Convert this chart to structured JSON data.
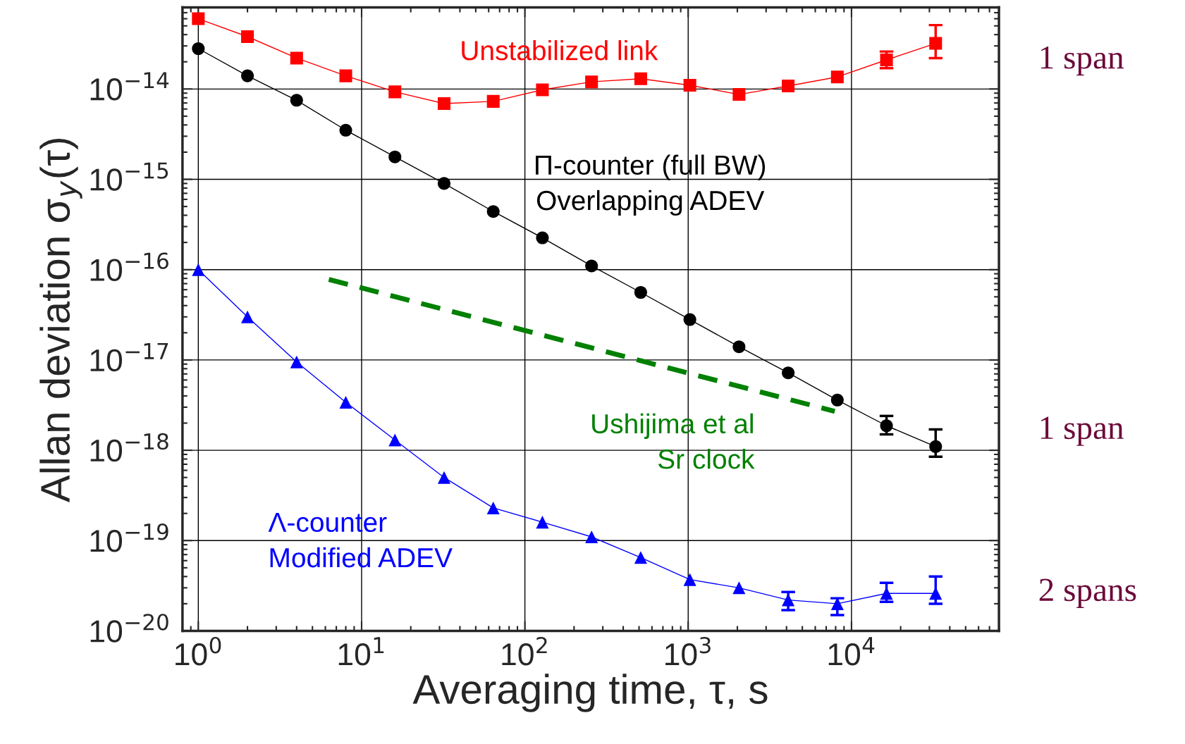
{
  "chart_data": {
    "type": "line",
    "xlabel": "Averaging time, τ, s",
    "ylabel": "Allan deviation σ$_{y}$(τ)",
    "log": "xy",
    "grid": true,
    "legend": false,
    "xlim": [
      0.8,
      80000
    ],
    "ylim": [
      1e-20,
      8e-14
    ],
    "xticks": [
      {
        "value": 1,
        "label": "10$^{0}$"
      },
      {
        "value": 10,
        "label": "10$^{1}$"
      },
      {
        "value": 100,
        "label": "10$^{2}$"
      },
      {
        "value": 1000,
        "label": "10$^{3}$"
      },
      {
        "value": 10000,
        "label": "10$^{4}$"
      }
    ],
    "yticks": [
      {
        "value": 1e-20,
        "label": "10$^{−20}$"
      },
      {
        "value": 1e-19,
        "label": "10$^{−19}$"
      },
      {
        "value": 1e-18,
        "label": "10$^{−18}$"
      },
      {
        "value": 1e-17,
        "label": "10$^{−17}$"
      },
      {
        "value": 1e-16,
        "label": "10$^{−16}$"
      },
      {
        "value": 1e-15,
        "label": "10$^{−15}$"
      },
      {
        "value": 1e-14,
        "label": "10$^{−14}$"
      }
    ],
    "x": [
      1,
      2,
      4,
      8,
      16,
      32,
      64,
      128,
      256,
      512,
      1024,
      2048,
      4096,
      8192,
      16384,
      32768
    ],
    "series": [
      {
        "name": "Unstabilized link",
        "color": "#ff0000",
        "marker": "square",
        "line_style": "solid",
        "values": [
          6e-14,
          3.8e-14,
          2.2e-14,
          1.4e-14,
          9.3e-15,
          6.9e-15,
          7.3e-15,
          9.8e-15,
          1.2e-14,
          1.3e-14,
          1.1e-14,
          8.7e-15,
          1.08e-14,
          1.36e-14,
          2.1e-14,
          3.2e-14
        ],
        "errors": [
          null,
          null,
          null,
          null,
          null,
          null,
          null,
          null,
          null,
          null,
          null,
          null,
          null,
          null,
          [
            1.7e-14,
            2.6e-14
          ],
          [
            2.2e-14,
            5.1e-14
          ]
        ]
      },
      {
        "name": "Π-counter (full BW)\nOverlapping ADEV",
        "color": "#000000",
        "marker": "circle",
        "line_style": "solid",
        "values": [
          2.8e-14,
          1.4e-14,
          7.5e-15,
          3.5e-15,
          1.77e-15,
          9e-16,
          4.4e-16,
          2.25e-16,
          1.1e-16,
          5.6e-17,
          2.8e-17,
          1.4e-17,
          7.2e-18,
          3.6e-18,
          1.87e-18,
          1.1e-18
        ],
        "errors": [
          null,
          null,
          null,
          null,
          null,
          null,
          null,
          null,
          null,
          null,
          null,
          null,
          null,
          null,
          [
            1.5e-18,
            2.4e-18
          ],
          [
            8.5e-19,
            1.7e-18
          ]
        ]
      },
      {
        "name": "Ushijima et al\nSr clock",
        "color": "#008000",
        "marker": "none",
        "line_style": "dashed",
        "x": [
          6.3,
          7900
        ],
        "values": [
          7.8e-17,
          2.7e-18
        ]
      },
      {
        "name": "Λ-counter\nModified ADEV",
        "color": "#0000ff",
        "marker": "triangle",
        "line_style": "solid",
        "values": [
          1e-16,
          3e-17,
          9.5e-18,
          3.4e-18,
          1.3e-18,
          5e-19,
          2.3e-19,
          1.6e-19,
          1.1e-19,
          6.5e-20,
          3.7e-20,
          3e-20,
          2.2e-20,
          2e-20,
          2.6e-20,
          2.6e-20
        ],
        "errors": [
          null,
          null,
          null,
          null,
          null,
          null,
          null,
          null,
          null,
          null,
          null,
          null,
          [
            1.7e-20,
            2.7e-20
          ],
          [
            1.5e-20,
            2.3e-20
          ],
          [
            2.1e-20,
            3.4e-20
          ],
          [
            2e-20,
            4e-20
          ]
        ]
      }
    ],
    "annotations": [
      "1 span",
      "1 span",
      "2 spans"
    ]
  }
}
